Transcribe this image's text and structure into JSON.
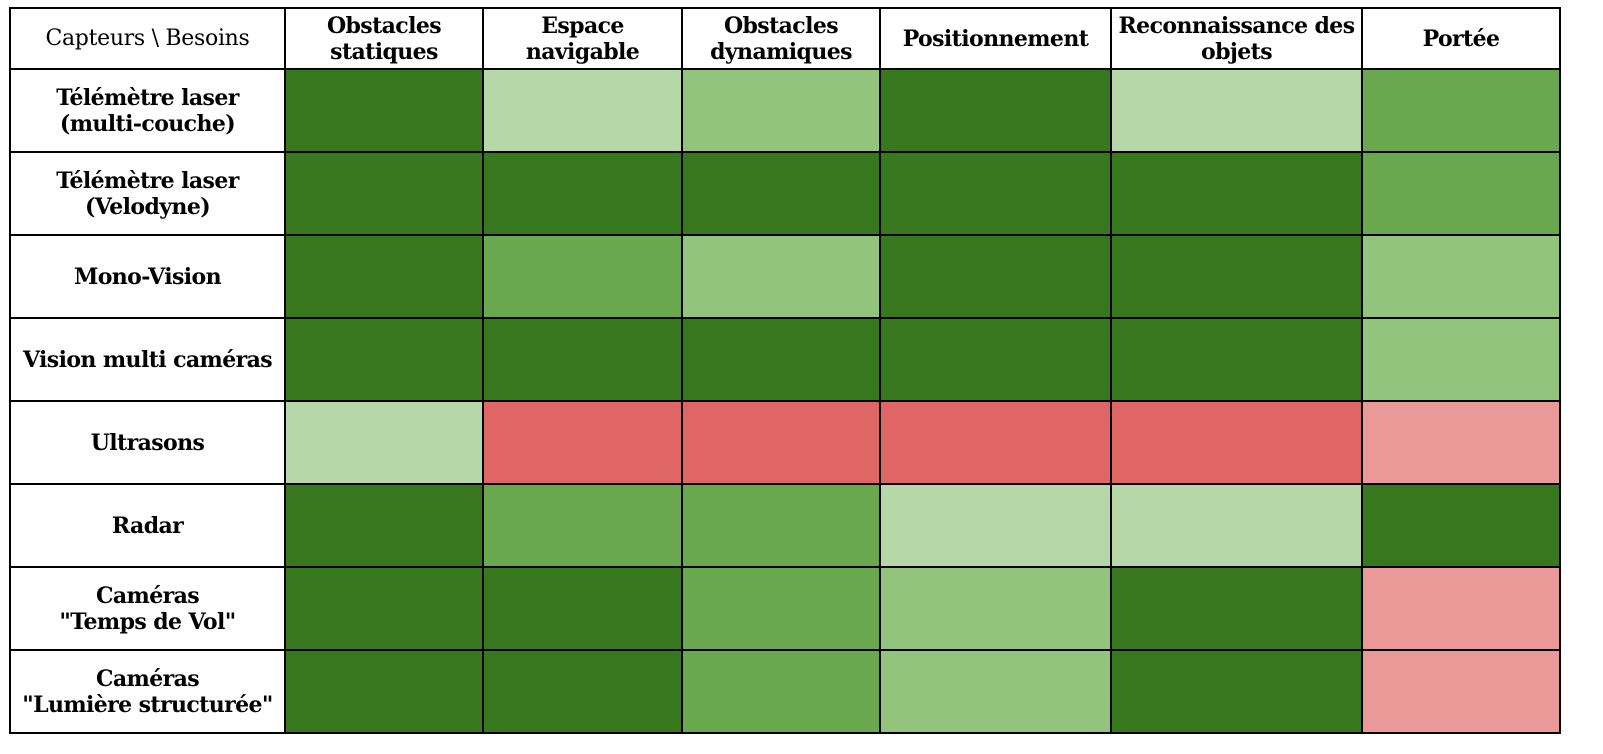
{
  "chart_data": {
    "type": "heatmap",
    "corner_label": "Capteurs \\ Besoins",
    "columns": [
      "Obstacles statiques",
      "Espace navigable",
      "Obstacles dynamiques",
      "Positionnement",
      "Reconnaissance des objets",
      "Portée"
    ],
    "rows": [
      "Télémètre laser\n(multi-couche)",
      "Télémètre laser\n(Velodyne)",
      "Mono-Vision",
      "Vision multi caméras",
      "Ultrasons",
      "Radar",
      "Caméras\n\"Temps de Vol\"",
      "Caméras\n\"Lumière structurée\""
    ],
    "scale": [
      {
        "level": 4,
        "color": "#37771e"
      },
      {
        "level": 3,
        "color": "#6aa84f"
      },
      {
        "level": 2,
        "color": "#93c47d"
      },
      {
        "level": 1,
        "color": "#b6d7a8"
      },
      {
        "level": 0,
        "color": "#ea9999"
      },
      {
        "level": -1,
        "color": "#e06666"
      }
    ],
    "values": [
      [
        4,
        1,
        2,
        4,
        1,
        3
      ],
      [
        4,
        4,
        4,
        4,
        4,
        3
      ],
      [
        4,
        3,
        2,
        4,
        4,
        2
      ],
      [
        4,
        4,
        4,
        4,
        4,
        2
      ],
      [
        1,
        -1,
        -1,
        -1,
        -1,
        0
      ],
      [
        4,
        3,
        3,
        1,
        1,
        4
      ],
      [
        4,
        4,
        3,
        2,
        4,
        0
      ],
      [
        4,
        4,
        3,
        2,
        4,
        0
      ]
    ]
  }
}
